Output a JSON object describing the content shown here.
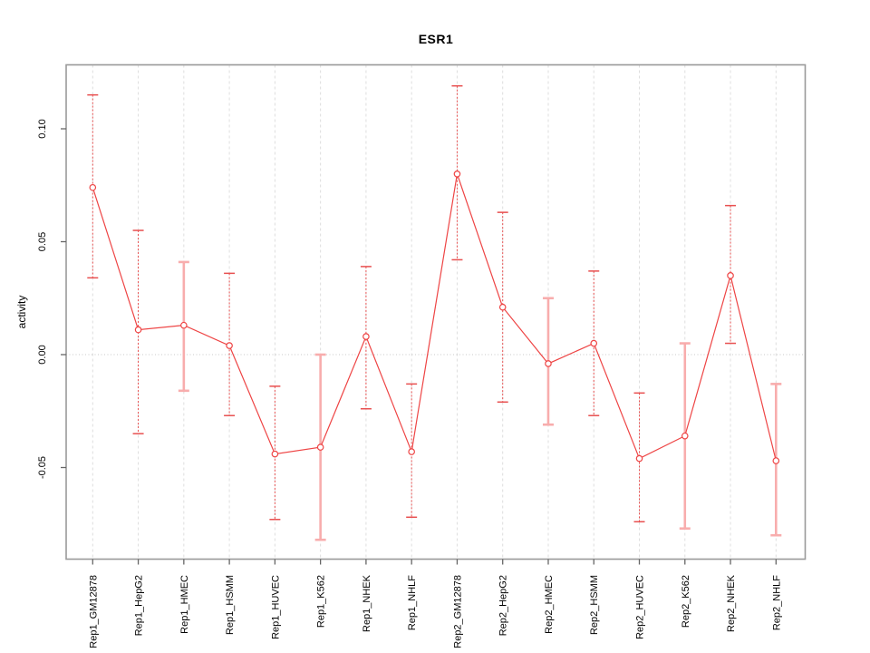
{
  "chart_data": {
    "type": "line",
    "title": "ESR1",
    "xlabel": "",
    "ylabel": "activity",
    "categories": [
      "Rep1_GM12878",
      "Rep1_HepG2",
      "Rep1_HMEC",
      "Rep1_HSMM",
      "Rep1_HUVEC",
      "Rep1_K562",
      "Rep1_NHEK",
      "Rep1_NHLF",
      "Rep2_GM12878",
      "Rep2_HepG2",
      "Rep2_HMEC",
      "Rep2_HSMM",
      "Rep2_HUVEC",
      "Rep2_K562",
      "Rep2_NHEK",
      "Rep2_NHLF"
    ],
    "series": [
      {
        "name": "activity",
        "values": [
          0.074,
          0.011,
          0.013,
          0.004,
          -0.044,
          -0.041,
          0.008,
          -0.043,
          0.08,
          0.021,
          -0.004,
          0.005,
          -0.046,
          -0.036,
          0.035,
          -0.047
        ]
      }
    ],
    "error_bars": {
      "upper": [
        0.115,
        0.055,
        0.041,
        0.036,
        -0.014,
        0.0,
        0.039,
        -0.013,
        0.119,
        0.063,
        0.025,
        0.037,
        -0.017,
        0.005,
        0.066,
        -0.013
      ],
      "lower": [
        0.034,
        -0.035,
        -0.016,
        -0.027,
        -0.073,
        -0.082,
        -0.024,
        -0.072,
        0.042,
        -0.021,
        -0.031,
        -0.027,
        -0.074,
        -0.077,
        0.005,
        -0.08
      ],
      "styles": [
        "dashed",
        "dashed",
        "thick",
        "dashed",
        "dashed",
        "thick",
        "dashed",
        "dashed",
        "dashed",
        "dashed",
        "thick",
        "dashed",
        "dashed",
        "thick",
        "dashed",
        "thick"
      ]
    },
    "yticks": {
      "values": [
        0.1,
        0.05,
        0.0,
        -0.05
      ],
      "labels": [
        "0.10",
        "0.05",
        "0.00",
        "-0.05"
      ]
    },
    "ylim": [
      -0.091,
      0.128
    ],
    "grid": {
      "vertical": "dashed line at every category",
      "horizontal": "dotted line at y = 0 only"
    },
    "legend_position": "none",
    "colors": {
      "series": "#ee4444",
      "error_bar_dashed": "#e85050",
      "error_bar_thick": "#f8adad",
      "grid": "#dedede",
      "zero_line": "#c8c8c8",
      "box": "#9a9a9a",
      "tick": "#666666",
      "text": "#000000"
    }
  }
}
